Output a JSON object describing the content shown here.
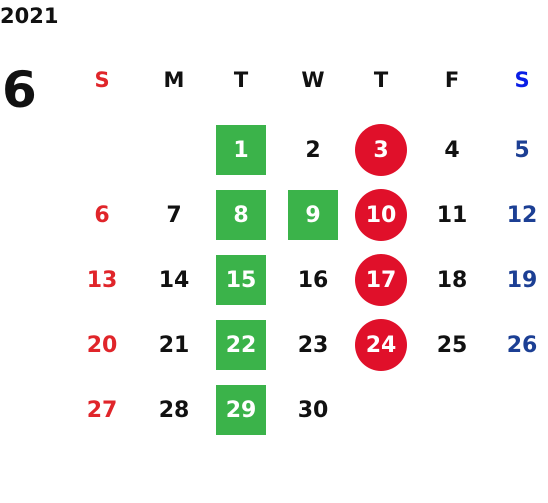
{
  "year": "2021",
  "month": "6",
  "weekdays": [
    "S",
    "M",
    "T",
    "W",
    "T",
    "F",
    "S"
  ],
  "weeks": [
    [
      null,
      null,
      {
        "day": 1,
        "highlight": "square"
      },
      {
        "day": 2
      },
      {
        "day": 3,
        "highlight": "circle"
      },
      {
        "day": 4
      },
      {
        "day": 5
      }
    ],
    [
      {
        "day": 6
      },
      {
        "day": 7
      },
      {
        "day": 8,
        "highlight": "square"
      },
      {
        "day": 9,
        "highlight": "square"
      },
      {
        "day": 10,
        "highlight": "circle"
      },
      {
        "day": 11
      },
      {
        "day": 12
      }
    ],
    [
      {
        "day": 13
      },
      {
        "day": 14
      },
      {
        "day": 15,
        "highlight": "square"
      },
      {
        "day": 16
      },
      {
        "day": 17,
        "highlight": "circle"
      },
      {
        "day": 18
      },
      {
        "day": 19
      }
    ],
    [
      {
        "day": 20
      },
      {
        "day": 21
      },
      {
        "day": 22,
        "highlight": "square"
      },
      {
        "day": 23
      },
      {
        "day": 24,
        "highlight": "circle"
      },
      {
        "day": 25
      },
      {
        "day": 26
      }
    ],
    [
      {
        "day": 27
      },
      {
        "day": 28
      },
      {
        "day": 29,
        "highlight": "square"
      },
      {
        "day": 30
      },
      null,
      null,
      null
    ]
  ]
}
